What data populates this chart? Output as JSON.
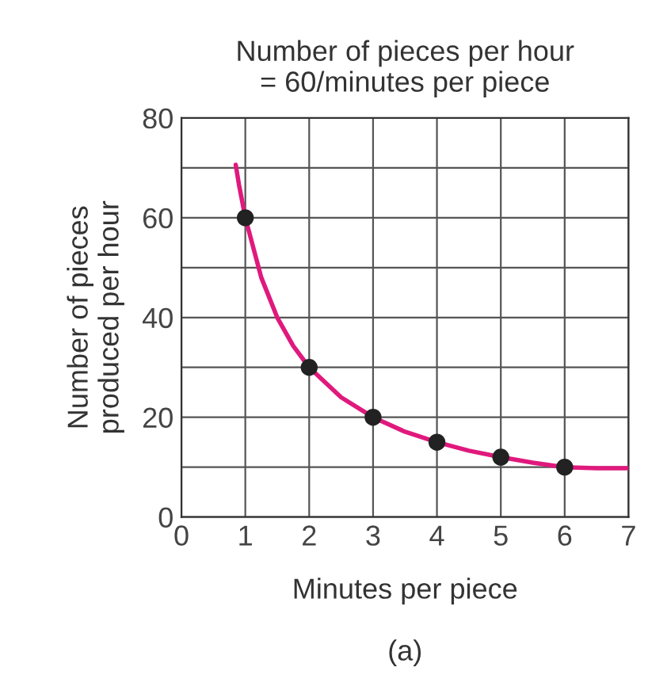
{
  "chart_data": {
    "type": "line",
    "title": "Number of pieces per hour\n= 60/minutes per piece",
    "xlabel": "Minutes per piece",
    "ylabel": "Number of pieces\nproduced per hour",
    "series": [
      {
        "color": "#e0197d",
        "marker": "none",
        "x": [
          0.85,
          0.9,
          1,
          1.25,
          1.5,
          1.75,
          2,
          2.5,
          3,
          3.5,
          4,
          4.5,
          5,
          5.5,
          6,
          6.5,
          7
        ],
        "values": [
          70.6,
          66.7,
          60,
          48,
          40,
          34.3,
          30,
          24,
          20,
          17.1,
          15,
          13.3,
          12,
          10.9,
          10,
          9.8,
          9.8
        ]
      },
      {
        "type": "scatter",
        "color": "#222222",
        "marker": "circle",
        "x": [
          1,
          2,
          3,
          4,
          5,
          6
        ],
        "values": [
          60,
          30,
          20,
          15,
          12,
          10
        ]
      }
    ],
    "xlim": [
      0,
      7
    ],
    "xticks": [
      0,
      1,
      2,
      3,
      4,
      5,
      6,
      7
    ],
    "ylim": [
      0,
      80
    ],
    "yticks": [
      0,
      {
        "value": 10,
        "label": null
      },
      20,
      {
        "value": 30,
        "label": null
      },
      40,
      {
        "value": 50,
        "label": null
      },
      60,
      {
        "value": 70,
        "label": null
      },
      80
    ],
    "grid": true,
    "annotations": [
      "(a)"
    ]
  }
}
